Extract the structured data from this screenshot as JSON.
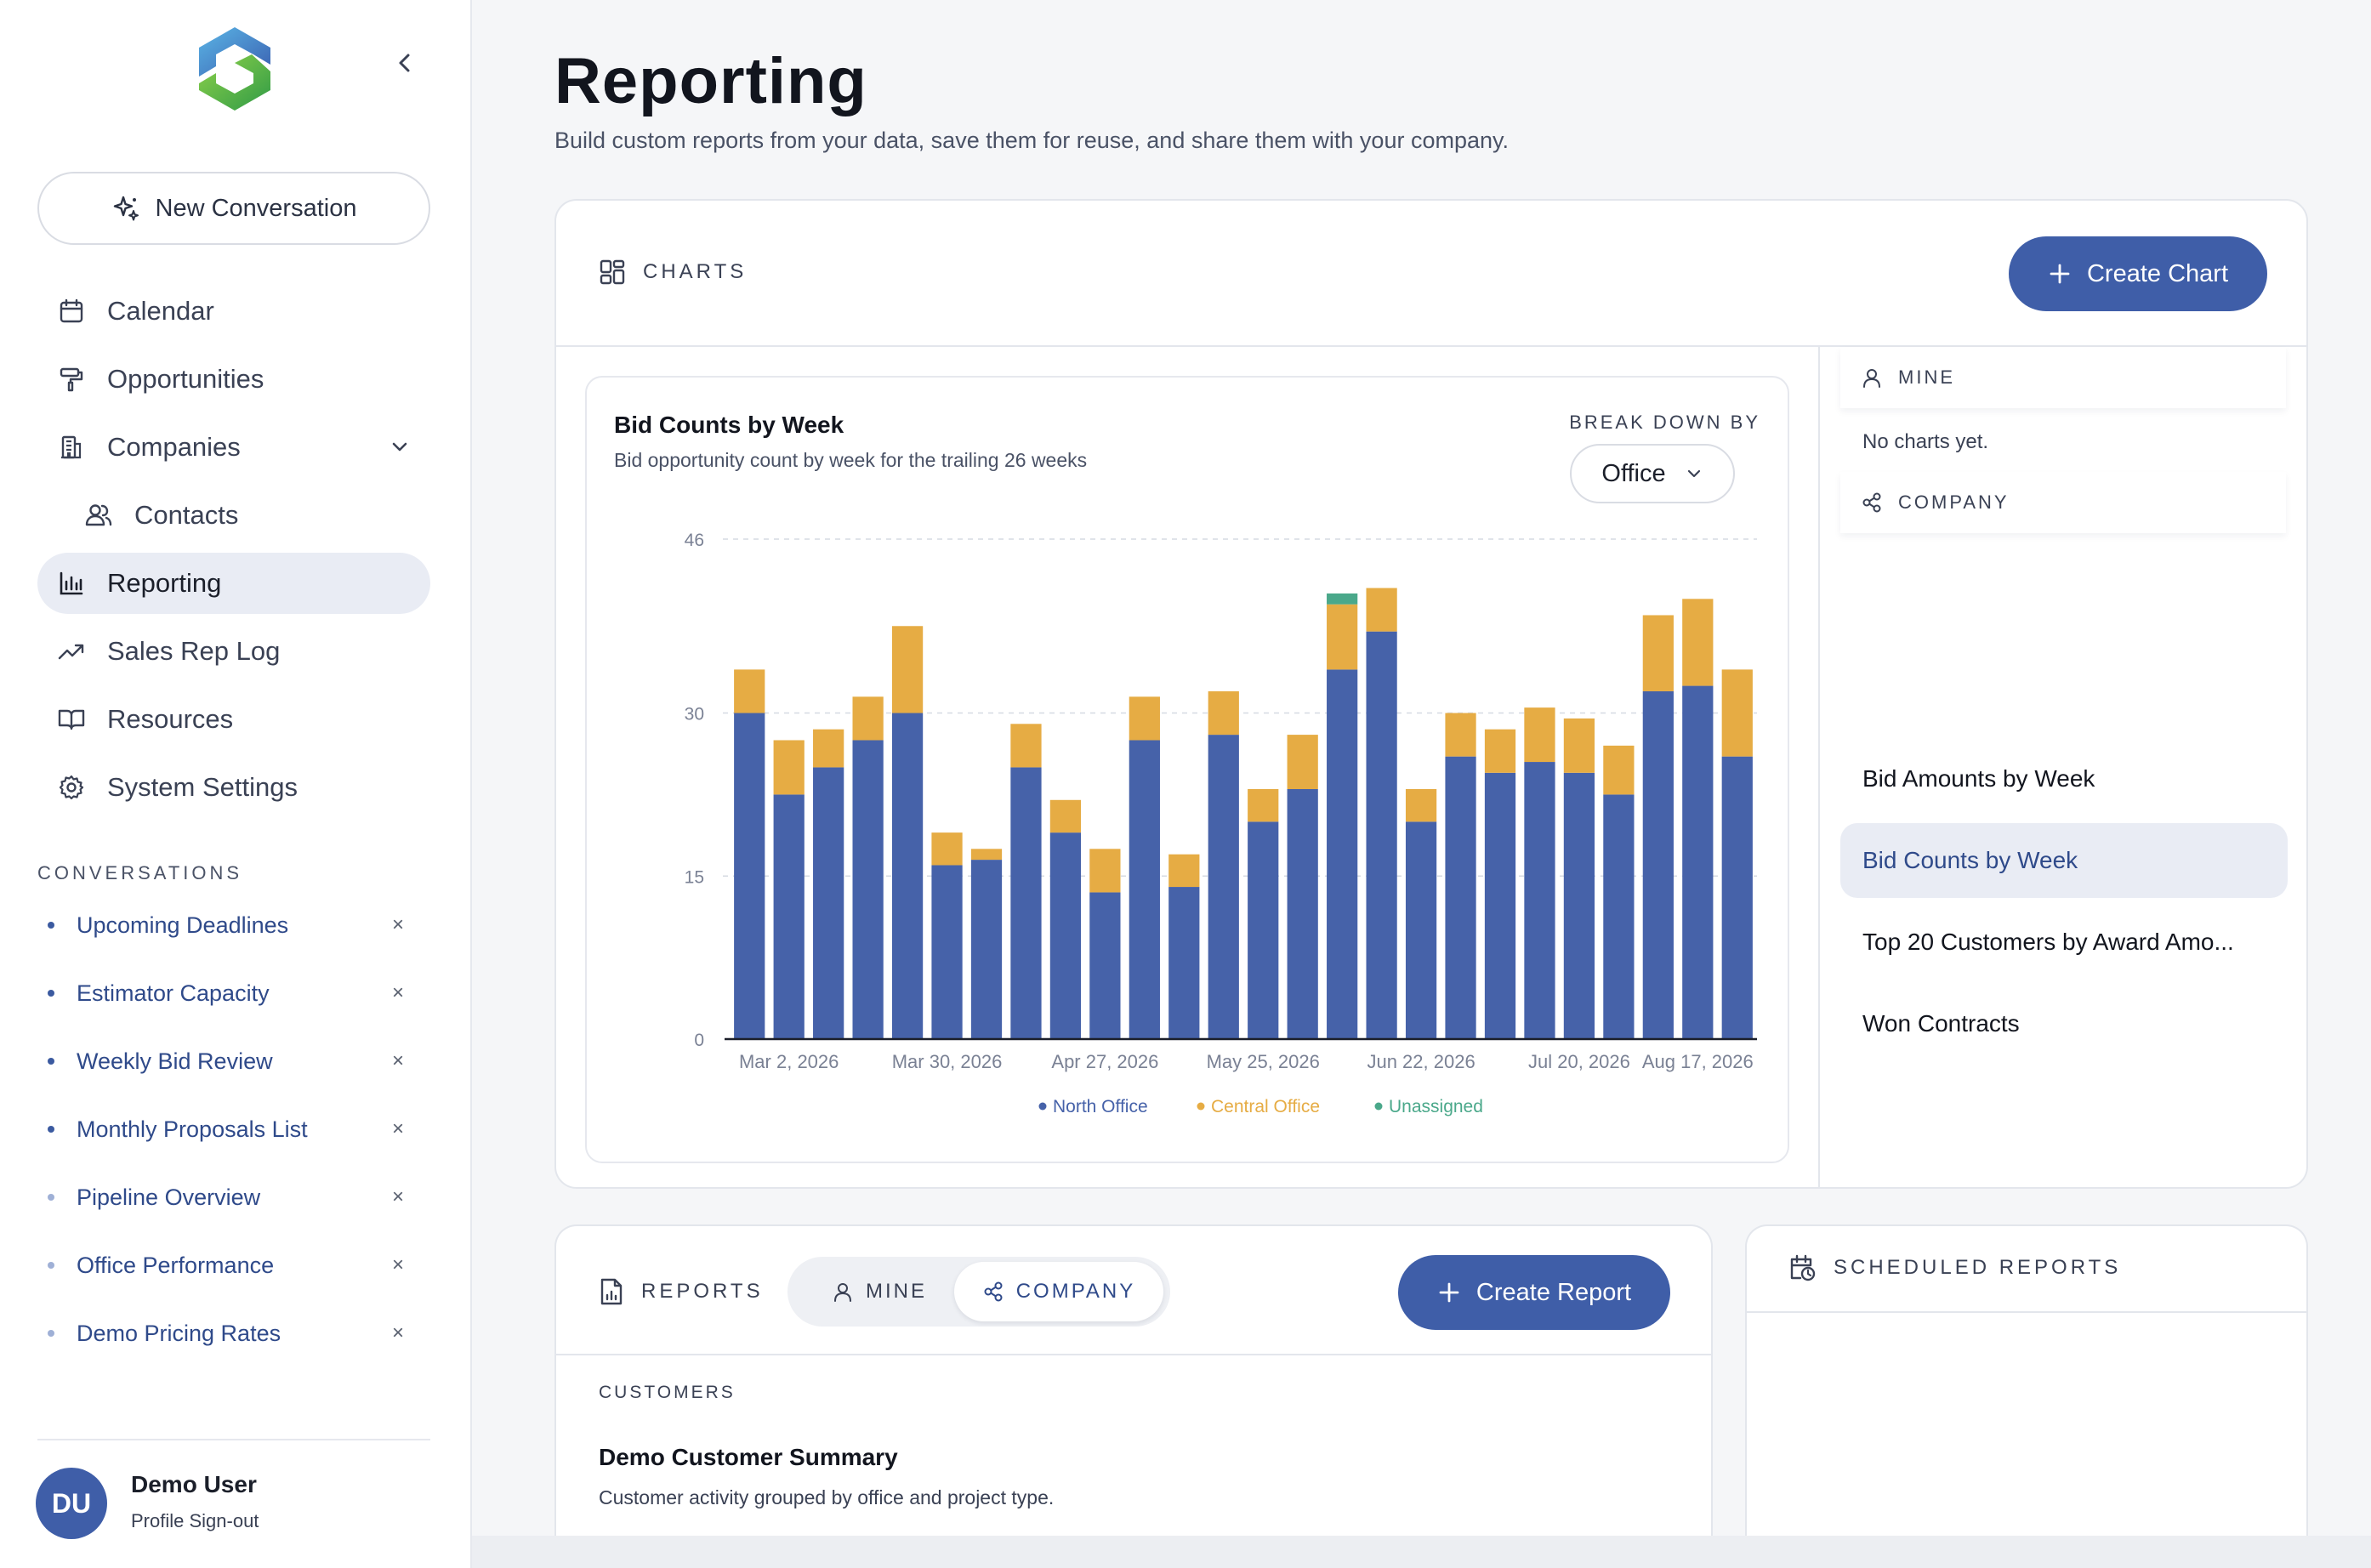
{
  "sidebar": {
    "new_conversation": "New Conversation",
    "nav": [
      {
        "label": "Calendar",
        "icon": "calendar-icon"
      },
      {
        "label": "Opportunities",
        "icon": "paint-roller-icon"
      },
      {
        "label": "Companies",
        "icon": "building-icon"
      },
      {
        "label": "Contacts",
        "icon": "users-icon"
      },
      {
        "label": "Reporting",
        "icon": "bar-chart-icon",
        "active": true
      },
      {
        "label": "Sales Rep Log",
        "icon": "trending-up-icon"
      },
      {
        "label": "Resources",
        "icon": "book-open-icon"
      },
      {
        "label": "System Settings",
        "icon": "gear-icon"
      }
    ],
    "conversations_heading": "CONVERSATIONS",
    "conversations": [
      "Upcoming Deadlines",
      "Estimator Capacity",
      "Weekly Bid Review",
      "Monthly Proposals List",
      "Pipeline Overview",
      "Office Performance",
      "Demo Pricing Rates"
    ],
    "remove_glyph": "×",
    "user": {
      "initials": "DU",
      "name": "Demo User",
      "links": "Profile Sign-out"
    }
  },
  "page": {
    "title": "Reporting",
    "subtitle": "Build custom reports from your data, save them for reuse, and share them with your company."
  },
  "charts_section": {
    "label": "CHARTS",
    "create_button": "Create Chart",
    "breakdown_label": "BREAK DOWN BY",
    "breakdown_value": "Office",
    "mine_label": "MINE",
    "no_charts": "No charts yet.",
    "company_label": "COMPANY",
    "company_charts": [
      "Bid Amounts by Week",
      "Bid Counts by Week",
      "Top 20 Customers by Award Amo...",
      "Won Contracts"
    ],
    "active_chart": "Bid Counts by Week"
  },
  "chart_data": {
    "type": "bar",
    "stacked": true,
    "title": "Bid Counts by Week",
    "subtitle": "Bid opportunity count by week for the trailing 26 weeks",
    "ylim": [
      0,
      46
    ],
    "yticks": [
      0,
      15,
      30,
      46
    ],
    "grid": true,
    "legend_position": "bottom",
    "x_tick_labels": [
      "Mar 2, 2026",
      "Mar 30, 2026",
      "Apr 27, 2026",
      "May 25, 2026",
      "Jun 22, 2026",
      "Jul 20, 2026",
      "Aug 17, 2026"
    ],
    "x_tick_indices": [
      1,
      5,
      9,
      13,
      17,
      21,
      24
    ],
    "series": [
      {
        "name": "North Office",
        "color": "#4662a9",
        "values": [
          30,
          22.5,
          25,
          27.5,
          30,
          16,
          16.5,
          25,
          19,
          13.5,
          27.5,
          14,
          28,
          20,
          23,
          34,
          37.5,
          20,
          26,
          24.5,
          25.5,
          24.5,
          22.5,
          32,
          32.5,
          26
        ]
      },
      {
        "name": "Central Office",
        "color": "#e6ac44",
        "values": [
          4,
          5,
          3.5,
          4,
          8,
          3,
          1,
          4,
          3,
          4,
          4,
          3,
          4,
          3,
          5,
          6,
          4,
          3,
          4,
          4,
          5,
          5,
          4.5,
          7,
          8,
          8
        ]
      },
      {
        "name": "Unassigned",
        "color": "#4aa88a",
        "values": [
          0,
          0,
          0,
          0,
          0,
          0,
          0,
          0,
          0,
          0,
          0,
          0,
          0,
          0,
          0,
          1,
          0,
          0,
          0,
          0,
          0,
          0,
          0,
          0,
          0,
          0
        ]
      }
    ]
  },
  "reports_section": {
    "label": "REPORTS",
    "tab_mine": "MINE",
    "tab_company": "COMPANY",
    "create_button": "Create Report",
    "group_label": "CUSTOMERS",
    "report_title": "Demo Customer Summary",
    "report_desc": "Customer activity grouped by office and project type."
  },
  "scheduled_section": {
    "label": "SCHEDULED REPORTS"
  },
  "colors": {
    "accent": "#3f5ea8",
    "north": "#4662a9",
    "central": "#e6ac44",
    "unassigned": "#4aa88a"
  }
}
